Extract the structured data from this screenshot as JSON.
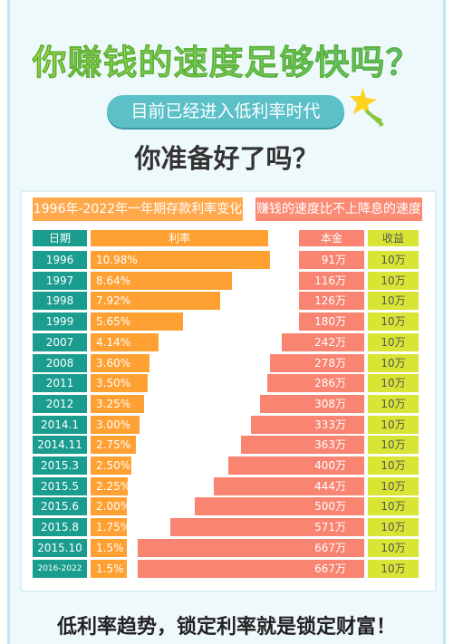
{
  "title": "你赚钱的速度足够快吗？",
  "subtitle": "目前已经进入低利率时代",
  "question": "你准备好了吗？",
  "footer": "低利率趋势，锁定利率就是锁定财富！",
  "colors": {
    "date": "#1a9d8f",
    "rate": "#ffa032",
    "amount": "#f88471",
    "gain": "#d9e535",
    "banner": "#5bc0c8"
  },
  "chart_data": {
    "type": "bar",
    "title": "1996年-2022年一年期存款利率变化",
    "right_title": "赚钱的速度比不上降息的速度",
    "headers": {
      "date": "日期",
      "rate": "利率",
      "amount": "本金",
      "gain": "收益"
    },
    "categories": [
      "1996",
      "1997",
      "1998",
      "1999",
      "2007",
      "2008",
      "2011",
      "2012",
      "2014.1",
      "2014.11",
      "2015.3",
      "2015.5",
      "2015.6",
      "2015.8",
      "2015.10",
      "2016-2022"
    ],
    "series": [
      {
        "name": "利率",
        "values": [
          10.98,
          8.64,
          7.92,
          5.65,
          4.14,
          3.6,
          3.5,
          3.25,
          3.0,
          2.75,
          2.5,
          2.25,
          2.0,
          1.75,
          1.5,
          1.5
        ],
        "labels": [
          "10.98%",
          "8.64%",
          "7.92%",
          "5.65%",
          "4.14%",
          "3.60%",
          "3.50%",
          "3.25%",
          "3.00%",
          "2.75%",
          "2.50%",
          "2.25%",
          "2.00%",
          "1.75%",
          "1.5%",
          "1.5%"
        ]
      },
      {
        "name": "本金",
        "values": [
          91,
          116,
          126,
          180,
          242,
          278,
          286,
          308,
          333,
          363,
          400,
          444,
          500,
          571,
          667,
          667
        ],
        "labels": [
          "91万",
          "116万",
          "126万",
          "180万",
          "242万",
          "278万",
          "286万",
          "308万",
          "333万",
          "363万",
          "400万",
          "444万",
          "500万",
          "571万",
          "667万",
          "667万"
        ]
      },
      {
        "name": "收益",
        "labels": [
          "10万",
          "10万",
          "10万",
          "10万",
          "10万",
          "10万",
          "10万",
          "10万",
          "10万",
          "10万",
          "10万",
          "10万",
          "10万",
          "10万",
          "10万",
          "10万"
        ]
      }
    ]
  }
}
